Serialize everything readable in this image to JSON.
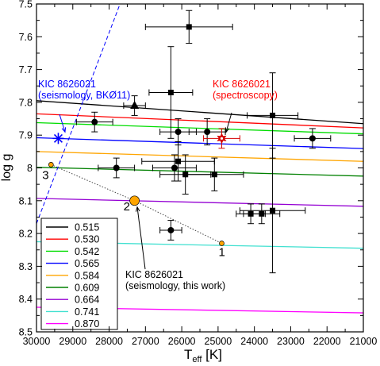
{
  "chart_data": {
    "type": "scatter",
    "xlabel": "T",
    "xlabel_sub": "eff",
    "xlabel_unit": " [K]",
    "ylabel": "log g",
    "xlim": [
      30000,
      21000
    ],
    "ylim": [
      7.5,
      8.5
    ],
    "x_reversed": true,
    "y_inverted": true,
    "x_ticks": [
      30000,
      29000,
      28000,
      27000,
      26000,
      25000,
      24000,
      23000,
      22000,
      21000
    ],
    "y_ticks": [
      7.5,
      7.6,
      7.7,
      7.8,
      7.9,
      8,
      8.1,
      8.2,
      8.3,
      8.4,
      8.5
    ],
    "grid": false,
    "legend_position": "bottom-left",
    "tracks": [
      {
        "name": "0.515",
        "color": "#000000",
        "y_at_xmin": 7.795,
        "y_at_xmax": 7.865
      },
      {
        "name": "0.530",
        "color": "#ff0000",
        "y_at_xmin": 7.835,
        "y_at_xmax": 7.878
      },
      {
        "name": "0.542",
        "color": "#00dd00",
        "y_at_xmin": 7.862,
        "y_at_xmax": 7.896
      },
      {
        "name": "0.565",
        "color": "#0000ff",
        "y_at_xmin": 7.908,
        "y_at_xmax": 7.941
      },
      {
        "name": "0.584",
        "color": "#ffa500",
        "y_at_xmin": 7.95,
        "y_at_xmax": 7.98
      },
      {
        "name": "0.609",
        "color": "#008000",
        "y_at_xmin": 7.998,
        "y_at_xmax": 8.025
      },
      {
        "name": "0.664",
        "color": "#9400d3",
        "y_at_xmin": 8.093,
        "y_at_xmax": 8.117
      },
      {
        "name": "0.741",
        "color": "#40e0d0",
        "y_at_xmin": 8.225,
        "y_at_xmax": 8.245
      },
      {
        "name": "0.870",
        "color": "#ff00ff",
        "y_at_xmin": 8.425,
        "y_at_xmax": 8.442
      }
    ],
    "circles": [
      {
        "x": 28400,
        "y": 7.86,
        "xerr": 500,
        "yerr": 0.03
      },
      {
        "x": 27800,
        "y": 8.0,
        "xerr": 500,
        "yerr": 0.03
      },
      {
        "x": 26100,
        "y": 7.89,
        "xerr": 500,
        "yerr": 0.04
      },
      {
        "x": 26200,
        "y": 8.0,
        "xerr": 600,
        "yerr": 0.04
      },
      {
        "x": 25300,
        "y": 7.89,
        "xerr": 500,
        "yerr": 0.04
      },
      {
        "x": 26300,
        "y": 8.19,
        "xerr": 300,
        "yerr": 0.03
      },
      {
        "x": 22400,
        "y": 7.91,
        "xerr": 500,
        "yerr": 0.03
      }
    ],
    "squares": [
      {
        "x": 25800,
        "y": 7.57,
        "xerr": 1200,
        "yerr": 0.05
      },
      {
        "x": 26300,
        "y": 7.77,
        "xerr": 600,
        "yerr": 0.14
      },
      {
        "x": 23500,
        "y": 7.84,
        "xerr": 700,
        "yerr": 0.13
      },
      {
        "x": 26100,
        "y": 7.98,
        "xerr": 1000,
        "yerr": 0.06
      },
      {
        "x": 25900,
        "y": 8.02,
        "xerr": 700,
        "yerr": 0.06
      },
      {
        "x": 25100,
        "y": 8.02,
        "xerr": 800,
        "yerr": 0.05
      },
      {
        "x": 24100,
        "y": 8.14,
        "xerr": 400,
        "yerr": 0.03
      },
      {
        "x": 23800,
        "y": 8.14,
        "xerr": 500,
        "yerr": 0.03
      },
      {
        "x": 23500,
        "y": 8.13,
        "xerr": 900,
        "yerr": 0.19
      }
    ],
    "triangles": [
      {
        "x": 27300,
        "y": 7.81,
        "xerr": 300,
        "yerr": 0.03
      }
    ],
    "spectroscopy": {
      "x": 24900,
      "y": 7.91,
      "xerr": 500,
      "yerr": 0.03,
      "color": "#d40000"
    },
    "seismology_bko11": {
      "x": 29400,
      "y": 7.91,
      "color": "#0000ff",
      "line_start": [
        30000,
        8.17
      ],
      "line_end": [
        27700,
        7.5
      ]
    },
    "seismology_this_work": [
      {
        "label": "1",
        "x": 24900,
        "y": 8.23
      },
      {
        "label": "2",
        "x": 27300,
        "y": 8.1
      },
      {
        "label": "3",
        "x": 29600,
        "y": 7.99
      }
    ],
    "annotations": [
      {
        "text_lines": [
          "KIC 8626021",
          "(seismology, BKØ11)"
        ],
        "color": "#0000ff"
      },
      {
        "text_lines": [
          "KIC 8626021",
          "(spectroscopy)"
        ],
        "color": "#ff0000"
      },
      {
        "text_lines": [
          "KIC 8626021",
          "(seismology, this work)"
        ],
        "color": "#000000"
      }
    ]
  }
}
